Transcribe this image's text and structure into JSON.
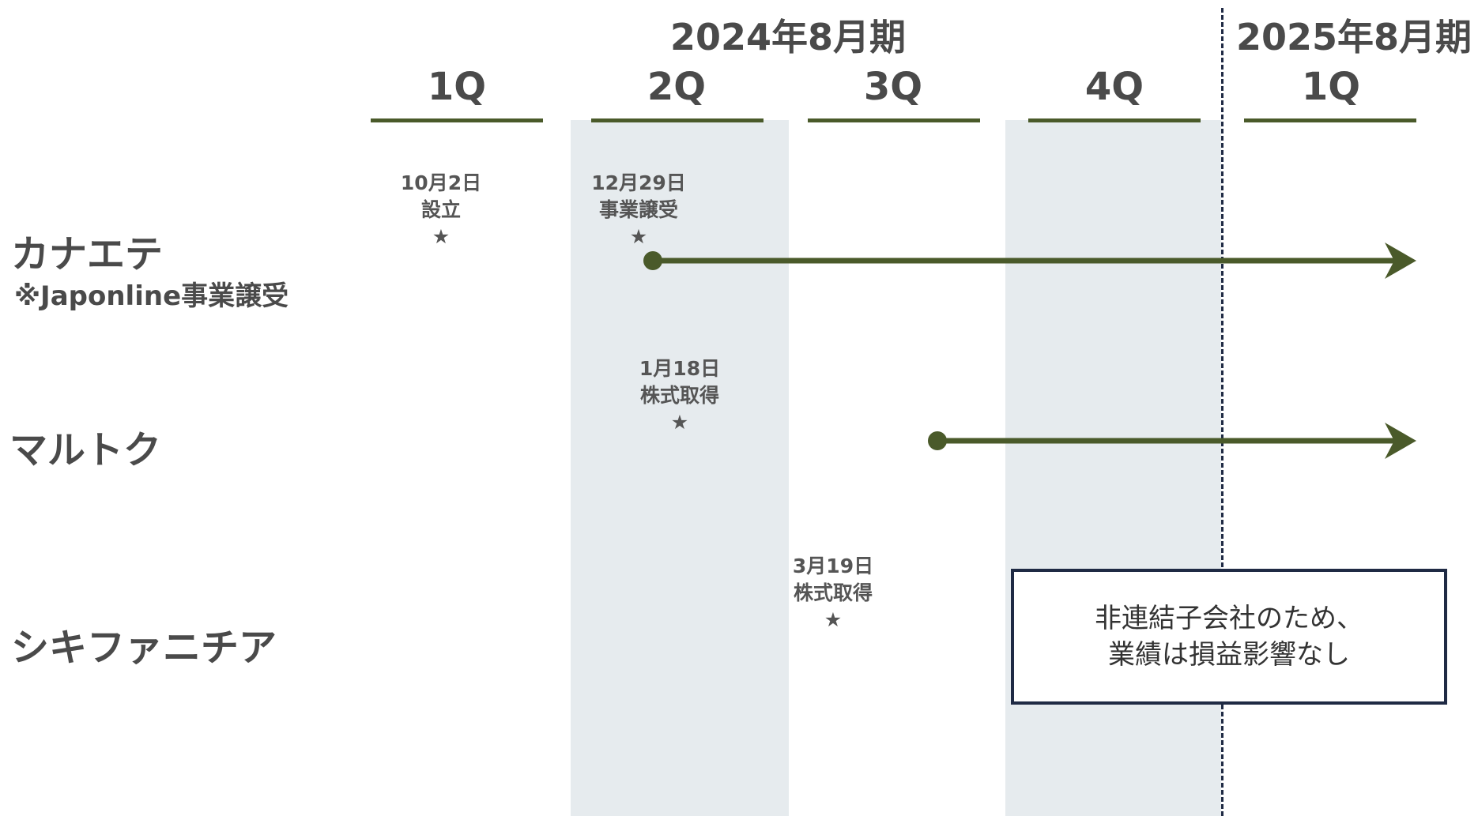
{
  "fiscal_years": [
    "2024年8月期",
    "2025年8月期"
  ],
  "quarters": [
    "1Q",
    "2Q",
    "3Q",
    "4Q",
    "1Q"
  ],
  "events": [
    {
      "date": "10月2日",
      "label": "設立",
      "star": "★"
    },
    {
      "date": "12月29日",
      "label": "事業譲受",
      "star": "★"
    },
    {
      "date": "1月18日",
      "label": "株式取得",
      "star": "★"
    },
    {
      "date": "3月19日",
      "label": "株式取得",
      "star": "★"
    }
  ],
  "companies": [
    {
      "name": "カナエテ",
      "note": "※Japonline事業譲受"
    },
    {
      "name": "マルトク"
    },
    {
      "name": "シキファニチア"
    }
  ],
  "note_box": {
    "line1": "非連結子会社のため、",
    "line2": "業績は損益影響なし"
  },
  "colors": {
    "accent": "#4a5a2a",
    "shade": "#e6ebee",
    "dash": "#1f2a44",
    "text": "#4a4a4a"
  }
}
